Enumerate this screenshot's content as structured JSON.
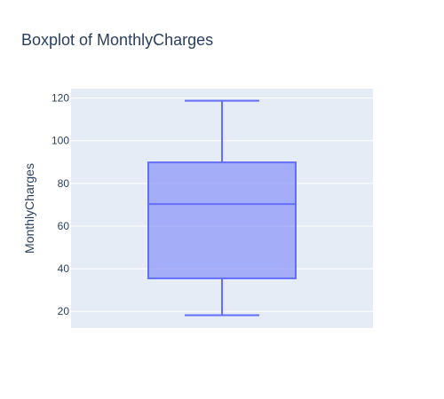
{
  "chart_data": {
    "type": "box",
    "title": "Boxplot of MonthlyCharges",
    "xlabel": "",
    "ylabel": "MonthlyCharges",
    "ylim": [
      12.2,
      124.4
    ],
    "yticks": [
      20,
      40,
      60,
      80,
      100,
      120
    ],
    "grid": true,
    "series": [
      {
        "min": 18.25,
        "q1": 35.5,
        "median": 70.35,
        "q3": 89.85,
        "max": 118.75
      }
    ]
  },
  "colors": {
    "plot_background": "#E5ECF6",
    "grid": "#ffffff",
    "box_line": "#636EFA",
    "box_fill": "rgba(99,110,250,0.5)",
    "text": "#2a3f5f"
  }
}
